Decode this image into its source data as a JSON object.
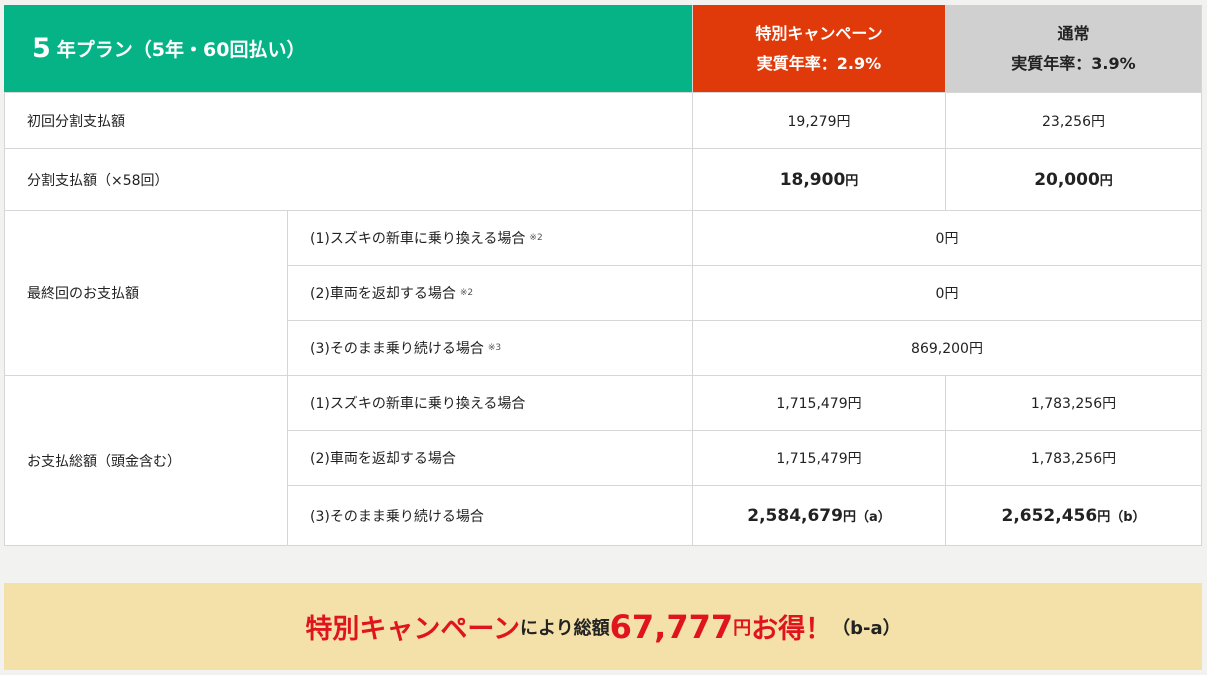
{
  "header": {
    "plan_num": "5",
    "plan_title": "年プラン（5年・60回払い）",
    "special_title": "特別キャンペーン",
    "special_rate": "実質年率：2.9%",
    "normal_title": "通常",
    "normal_rate": "実質年率：3.9%"
  },
  "rows": {
    "first": {
      "label": "初回分割支払額",
      "special": "19,279円",
      "normal": "23,256円"
    },
    "installment": {
      "label": "分割支払額（×58回）",
      "special": "18,900",
      "normal": "20,000",
      "unit": "円"
    },
    "final": {
      "label": "最終回のお支払額",
      "items": [
        {
          "label": "(1)スズキの新車に乗り換える場合",
          "note": "※2",
          "value": "0円"
        },
        {
          "label": "(2)車両を返却する場合",
          "note": "※2",
          "value": "0円"
        },
        {
          "label": "(3)そのまま乗り続ける場合",
          "note": "※3",
          "value": "869,200円"
        }
      ]
    },
    "total": {
      "label": "お支払総額（頭金含む）",
      "items": [
        {
          "label": "(1)スズキの新車に乗り換える場合",
          "special": "1,715,479円",
          "normal": "1,783,256円"
        },
        {
          "label": "(2)車両を返却する場合",
          "special": "1,715,479円",
          "normal": "1,783,256円"
        },
        {
          "label": "(3)そのまま乗り続ける場合",
          "special": "2,584,679",
          "special_suffix": "円（a）",
          "normal": "2,652,456",
          "normal_suffix": "円（b）"
        }
      ]
    }
  },
  "banner": {
    "campaign": "特別キャンペーン",
    "mid": "により総額",
    "amount": "67,777",
    "yen": "円",
    "otoku": "お得！",
    "formula": "（b-a）"
  },
  "colors": {
    "green": "#05b387",
    "orange": "#e03a0a",
    "gray": "#d0d0d0",
    "banner": "#f3e1a9",
    "red": "#e0141e"
  }
}
